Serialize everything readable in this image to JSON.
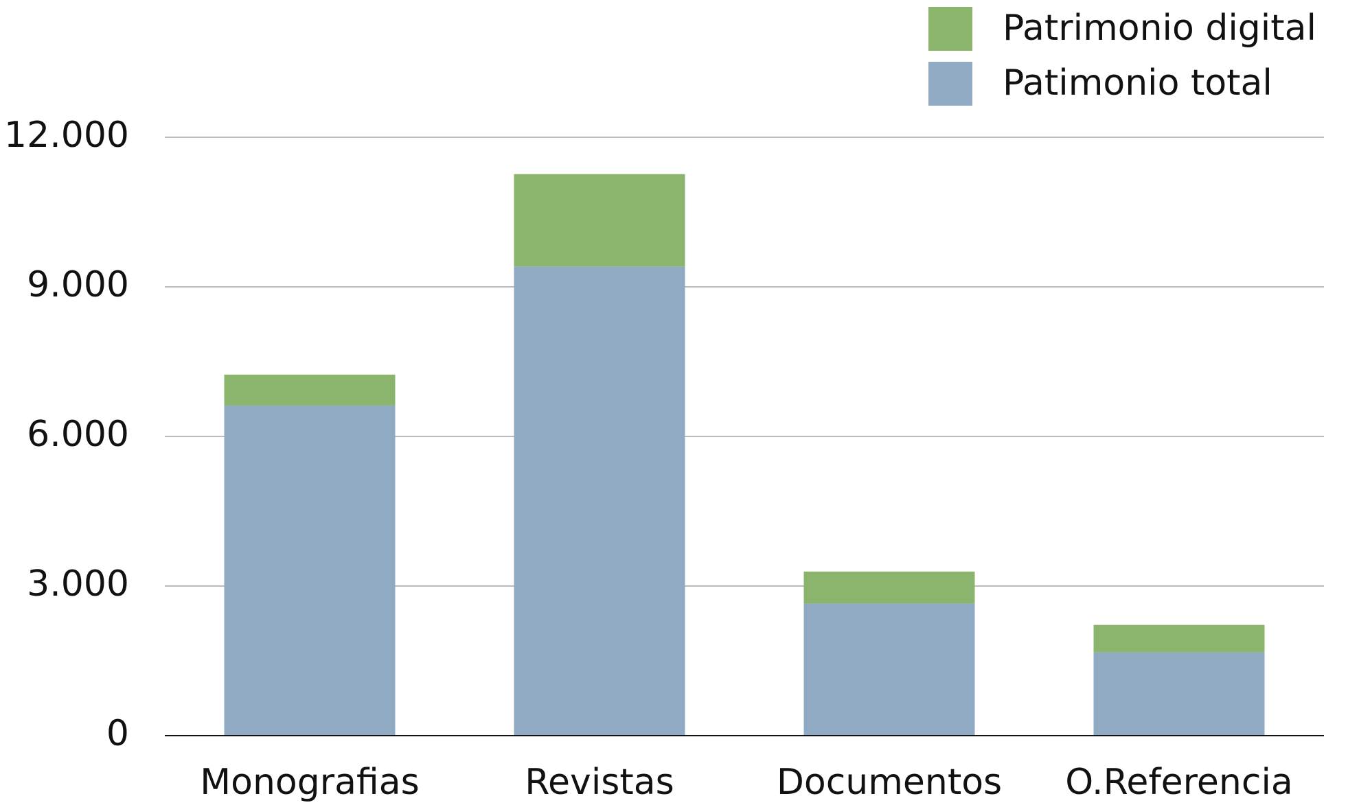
{
  "chart_data": {
    "type": "bar",
    "stacked": true,
    "categories": [
      "Monografias",
      "Revistas",
      "Documentos",
      "O.Referencia"
    ],
    "series": [
      {
        "name": "Patimonio total",
        "color": "#8faac2",
        "values": [
          6620,
          9410,
          2650,
          1670
        ]
      },
      {
        "name": "Patrimonio digital",
        "color": "#8bb46c",
        "values": [
          620,
          1850,
          640,
          550
        ]
      }
    ],
    "ylim": [
      0,
      12000
    ],
    "yticks": [
      0,
      {
        "value": 3000,
        "label": "3.000"
      },
      {
        "value": 6000,
        "label": "6.000"
      },
      {
        "value": 9000,
        "label": "9.000"
      },
      {
        "value": 12000,
        "label": "12.000"
      }
    ],
    "grid": true,
    "legend": "top-right"
  }
}
